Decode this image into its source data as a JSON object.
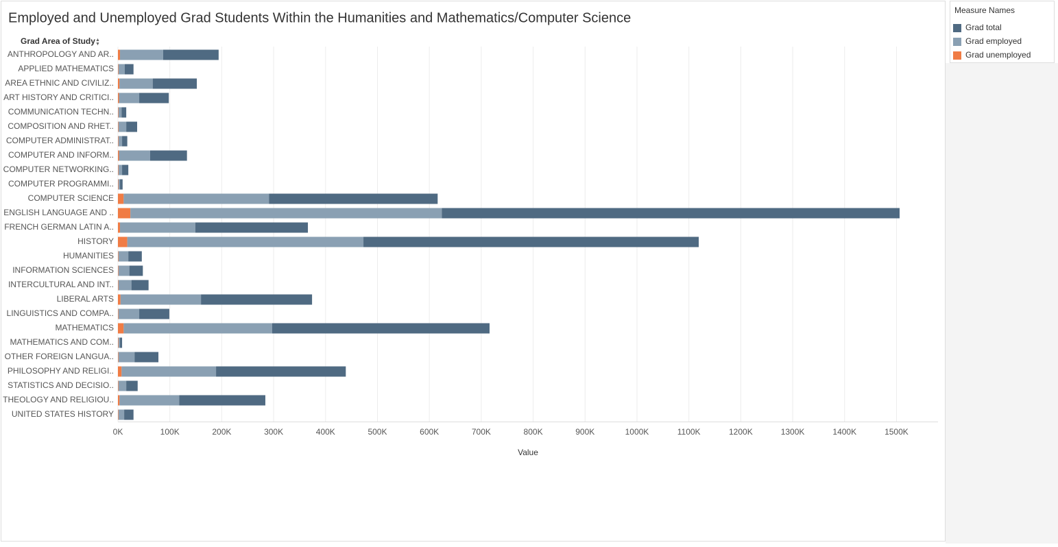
{
  "chart_data": {
    "type": "bar",
    "orientation": "horizontal",
    "stacked": true,
    "title": "Employed and Unemployed Grad Students Within the Humanities and Mathematics/Computer Science",
    "y_axis_title": "Grad Area of Study",
    "x_axis_title": "Value",
    "legend_title": "Measure Names",
    "legend_position": "right",
    "grid": true,
    "categories": [
      "ANTHROPOLOGY AND AR..",
      "APPLIED MATHEMATICS",
      "AREA ETHNIC AND CIVILIZ..",
      "ART HISTORY AND CRITICI..",
      "COMMUNICATION TECHN..",
      "COMPOSITION AND RHET..",
      "COMPUTER ADMINISTRAT..",
      "COMPUTER AND INFORM..",
      "COMPUTER NETWORKING..",
      "COMPUTER PROGRAMMI..",
      "COMPUTER SCIENCE",
      "ENGLISH LANGUAGE AND ..",
      "FRENCH GERMAN LATIN A..",
      "HISTORY",
      "HUMANITIES",
      "INFORMATION SCIENCES",
      "INTERCULTURAL AND INT..",
      "LIBERAL ARTS",
      "LINGUISTICS AND COMPA..",
      "MATHEMATICS",
      "MATHEMATICS AND COM..",
      "OTHER FOREIGN LANGUA..",
      "PHILOSOPHY AND RELIGI..",
      "STATISTICS AND DECISIO..",
      "THEOLOGY AND RELIGIOU..",
      "UNITED STATES HISTORY"
    ],
    "series": [
      {
        "name": "Grad total",
        "color": "#4f6a82",
        "values": [
          107,
          17,
          85,
          57,
          9,
          21,
          10,
          71,
          12,
          5,
          325,
          882,
          217,
          646,
          26,
          26,
          33,
          214,
          58,
          419,
          4,
          46,
          250,
          22,
          166,
          18
        ]
      },
      {
        "name": "Grad employed",
        "color": "#8aa0b3",
        "values": [
          83,
          12,
          64,
          39,
          6,
          15,
          7,
          60,
          7,
          3,
          280,
          600,
          145,
          455,
          19,
          21,
          25,
          155,
          40,
          286,
          3,
          31,
          182,
          15,
          115,
          11
        ]
      },
      {
        "name": "Grad unemployed",
        "color": "#f07c45",
        "values": [
          4,
          1,
          3,
          2,
          1,
          1,
          1,
          2,
          1,
          1,
          11,
          24,
          4,
          18,
          1,
          1,
          1,
          5,
          1,
          11,
          1,
          1,
          7,
          1,
          3,
          1
        ]
      }
    ],
    "xlim": [
      0,
      1580
    ],
    "xticks": [
      {
        "value": 0,
        "label": "0K"
      },
      {
        "value": 100,
        "label": "100K"
      },
      {
        "value": 200,
        "label": "200K"
      },
      {
        "value": 300,
        "label": "300K"
      },
      {
        "value": 400,
        "label": "400K"
      },
      {
        "value": 500,
        "label": "500K"
      },
      {
        "value": 600,
        "label": "600K"
      },
      {
        "value": 700,
        "label": "700K"
      },
      {
        "value": 800,
        "label": "800K"
      },
      {
        "value": 900,
        "label": "900K"
      },
      {
        "value": 1000,
        "label": "1000K"
      },
      {
        "value": 1100,
        "label": "1100K"
      },
      {
        "value": 1200,
        "label": "1200K"
      },
      {
        "value": 1300,
        "label": "1300K"
      },
      {
        "value": 1400,
        "label": "1400K"
      },
      {
        "value": 1500,
        "label": "1500K"
      }
    ]
  }
}
